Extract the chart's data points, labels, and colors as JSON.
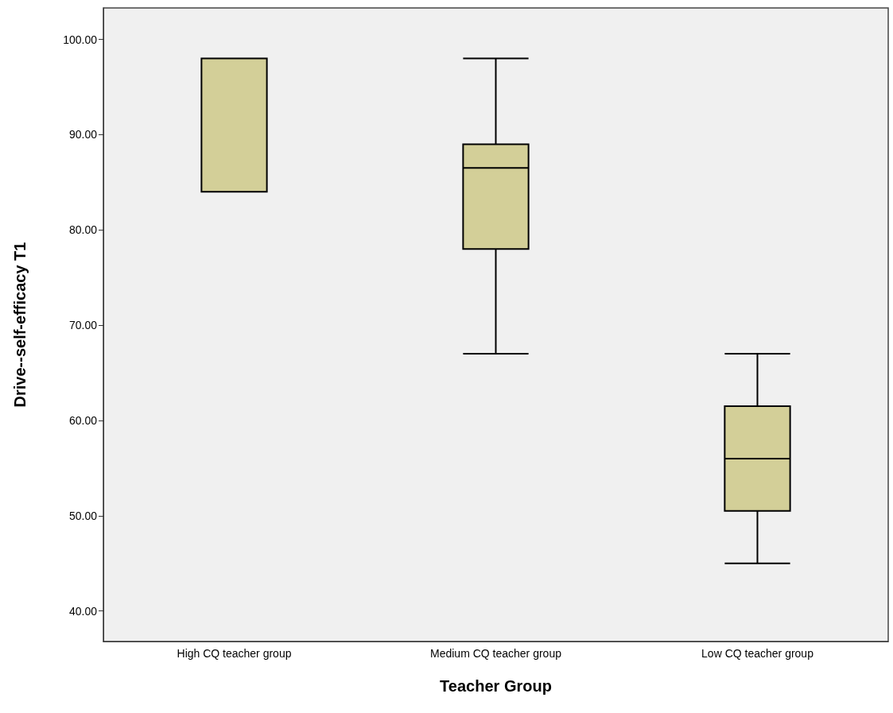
{
  "chart_data": {
    "type": "box",
    "xlabel": "Teacher Group",
    "ylabel": "Drive--self-efficacy T1",
    "categories": [
      "High CQ teacher group",
      "Medium CQ teacher group",
      "Low CQ teacher group"
    ],
    "series": [
      {
        "color": "#d3cf98",
        "boxes": [
          {
            "low": 84,
            "q1": 84,
            "median": 98,
            "q3": 98,
            "high": 98
          },
          {
            "low": 67,
            "q1": 78,
            "median": 86.5,
            "q3": 89,
            "high": 98
          },
          {
            "low": 45,
            "q1": 50.5,
            "median": 56,
            "q3": 61.5,
            "high": 67
          }
        ]
      }
    ],
    "ylim": [
      36.8,
      103.3
    ],
    "yticks": [
      {
        "value": 40,
        "label": "40.00"
      },
      {
        "value": 50,
        "label": "50.00"
      },
      {
        "value": 60,
        "label": "60.00"
      },
      {
        "value": 70,
        "label": "70.00"
      },
      {
        "value": 80,
        "label": "80.00"
      },
      {
        "value": 90,
        "label": "90.00"
      },
      {
        "value": 100,
        "label": "100.00"
      }
    ],
    "grid": false
  }
}
